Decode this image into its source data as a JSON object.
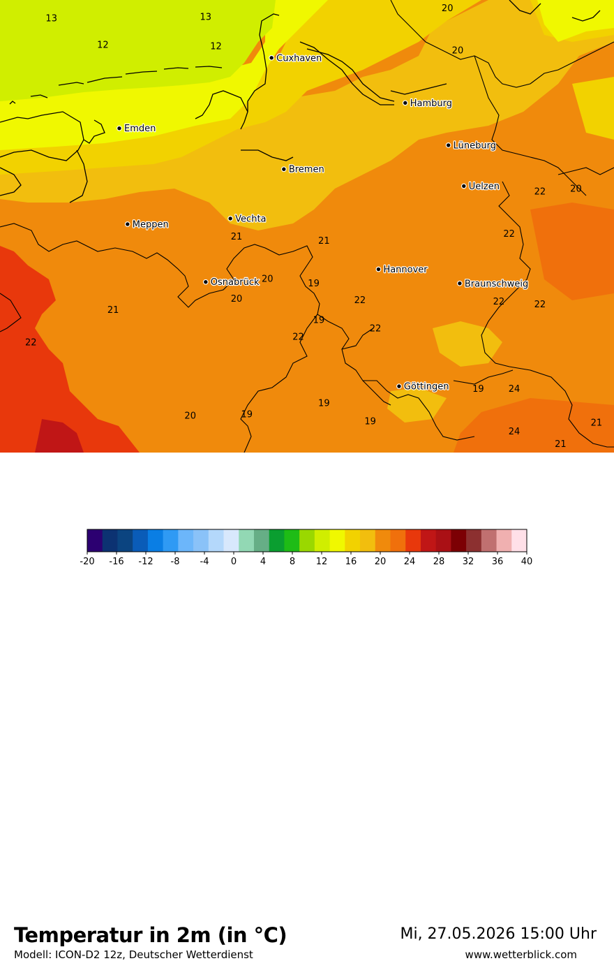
{
  "title": "Temperatur in 2m (in °C)",
  "model": "Modell: ICON-D2 12z, Deutscher Wetterdienst",
  "datetime": "Mi, 27.05.2026 15:00 Uhr",
  "website": "www.wetterblick.com",
  "cities": [
    {
      "name": "Cuxhaven",
      "lon": 8.69,
      "lat": 53.87
    },
    {
      "name": "Hamburg",
      "lon": 9.99,
      "lat": 53.55
    },
    {
      "name": "Emden",
      "lon": 7.21,
      "lat": 53.37
    },
    {
      "name": "Lüneburg",
      "lon": 10.41,
      "lat": 53.25
    },
    {
      "name": "Bremen",
      "lon": 8.81,
      "lat": 53.08
    },
    {
      "name": "Uelzen",
      "lon": 10.56,
      "lat": 52.96
    },
    {
      "name": "Vechta",
      "lon": 8.29,
      "lat": 52.73
    },
    {
      "name": "Meppen",
      "lon": 7.29,
      "lat": 52.69
    },
    {
      "name": "Hannover",
      "lon": 9.73,
      "lat": 52.37
    },
    {
      "name": "Osnabrück",
      "lon": 8.05,
      "lat": 52.28
    },
    {
      "name": "Braunschweig",
      "lon": 10.52,
      "lat": 52.27
    },
    {
      "name": "Göttingen",
      "lon": 9.93,
      "lat": 51.54
    }
  ],
  "map_values": [
    {
      "v": "13",
      "lon": 6.55,
      "lat": 54.13
    },
    {
      "v": "13",
      "lon": 8.05,
      "lat": 54.14
    },
    {
      "v": "20",
      "lon": 10.4,
      "lat": 54.2
    },
    {
      "v": "12",
      "lon": 7.05,
      "lat": 53.94
    },
    {
      "v": "12",
      "lon": 8.15,
      "lat": 53.93
    },
    {
      "v": "20",
      "lon": 10.5,
      "lat": 53.9
    },
    {
      "v": "22",
      "lon": 11.3,
      "lat": 52.9
    },
    {
      "v": "20",
      "lon": 11.65,
      "lat": 52.92
    },
    {
      "v": "22",
      "lon": 11.0,
      "lat": 52.6
    },
    {
      "v": "21",
      "lon": 8.35,
      "lat": 52.58
    },
    {
      "v": "21",
      "lon": 9.2,
      "lat": 52.55
    },
    {
      "v": "20",
      "lon": 8.65,
      "lat": 52.28
    },
    {
      "v": "19",
      "lon": 9.1,
      "lat": 52.25
    },
    {
      "v": "20",
      "lon": 8.35,
      "lat": 52.14
    },
    {
      "v": "22",
      "lon": 9.55,
      "lat": 52.13
    },
    {
      "v": "22",
      "lon": 10.9,
      "lat": 52.12
    },
    {
      "v": "22",
      "lon": 11.3,
      "lat": 52.1
    },
    {
      "v": "21",
      "lon": 7.15,
      "lat": 52.06
    },
    {
      "v": "19",
      "lon": 9.15,
      "lat": 51.99
    },
    {
      "v": "22",
      "lon": 8.95,
      "lat": 51.87
    },
    {
      "v": "22",
      "lon": 9.7,
      "lat": 51.93
    },
    {
      "v": "22",
      "lon": 6.35,
      "lat": 51.83
    },
    {
      "v": "19",
      "lon": 10.7,
      "lat": 51.5
    },
    {
      "v": "24",
      "lon": 11.05,
      "lat": 51.5
    },
    {
      "v": "19",
      "lon": 9.2,
      "lat": 51.4
    },
    {
      "v": "20",
      "lon": 7.9,
      "lat": 51.31
    },
    {
      "v": "19",
      "lon": 8.45,
      "lat": 51.32
    },
    {
      "v": "19",
      "lon": 9.65,
      "lat": 51.27
    },
    {
      "v": "21",
      "lon": 11.85,
      "lat": 51.26
    },
    {
      "v": "24",
      "lon": 11.05,
      "lat": 51.2
    },
    {
      "v": "21",
      "lon": 11.5,
      "lat": 51.11
    }
  ],
  "colorbar": {
    "ticks": [
      "-20",
      "-16",
      "-12",
      "-8",
      "-4",
      "0",
      "4",
      "8",
      "12",
      "16",
      "20",
      "24",
      "28",
      "32",
      "36",
      "40"
    ],
    "colors": [
      "#2c0071",
      "#0c3272",
      "#0b4480",
      "#0a5cb8",
      "#0a7ee4",
      "#2f9af4",
      "#6cb6fa",
      "#8ac2f8",
      "#b4d8fb",
      "#d8e8fc",
      "#92d8b4",
      "#66ae86",
      "#0a9e30",
      "#1ebc16",
      "#9ad800",
      "#d0ee00",
      "#f0f800",
      "#f2d200",
      "#f2be0e",
      "#f08a0c",
      "#f0700c",
      "#e8380c",
      "#c01616",
      "#aa1015",
      "#7c0004",
      "#8c3030",
      "#c07070",
      "#f0b0b0",
      "#ffe0e8"
    ]
  }
}
